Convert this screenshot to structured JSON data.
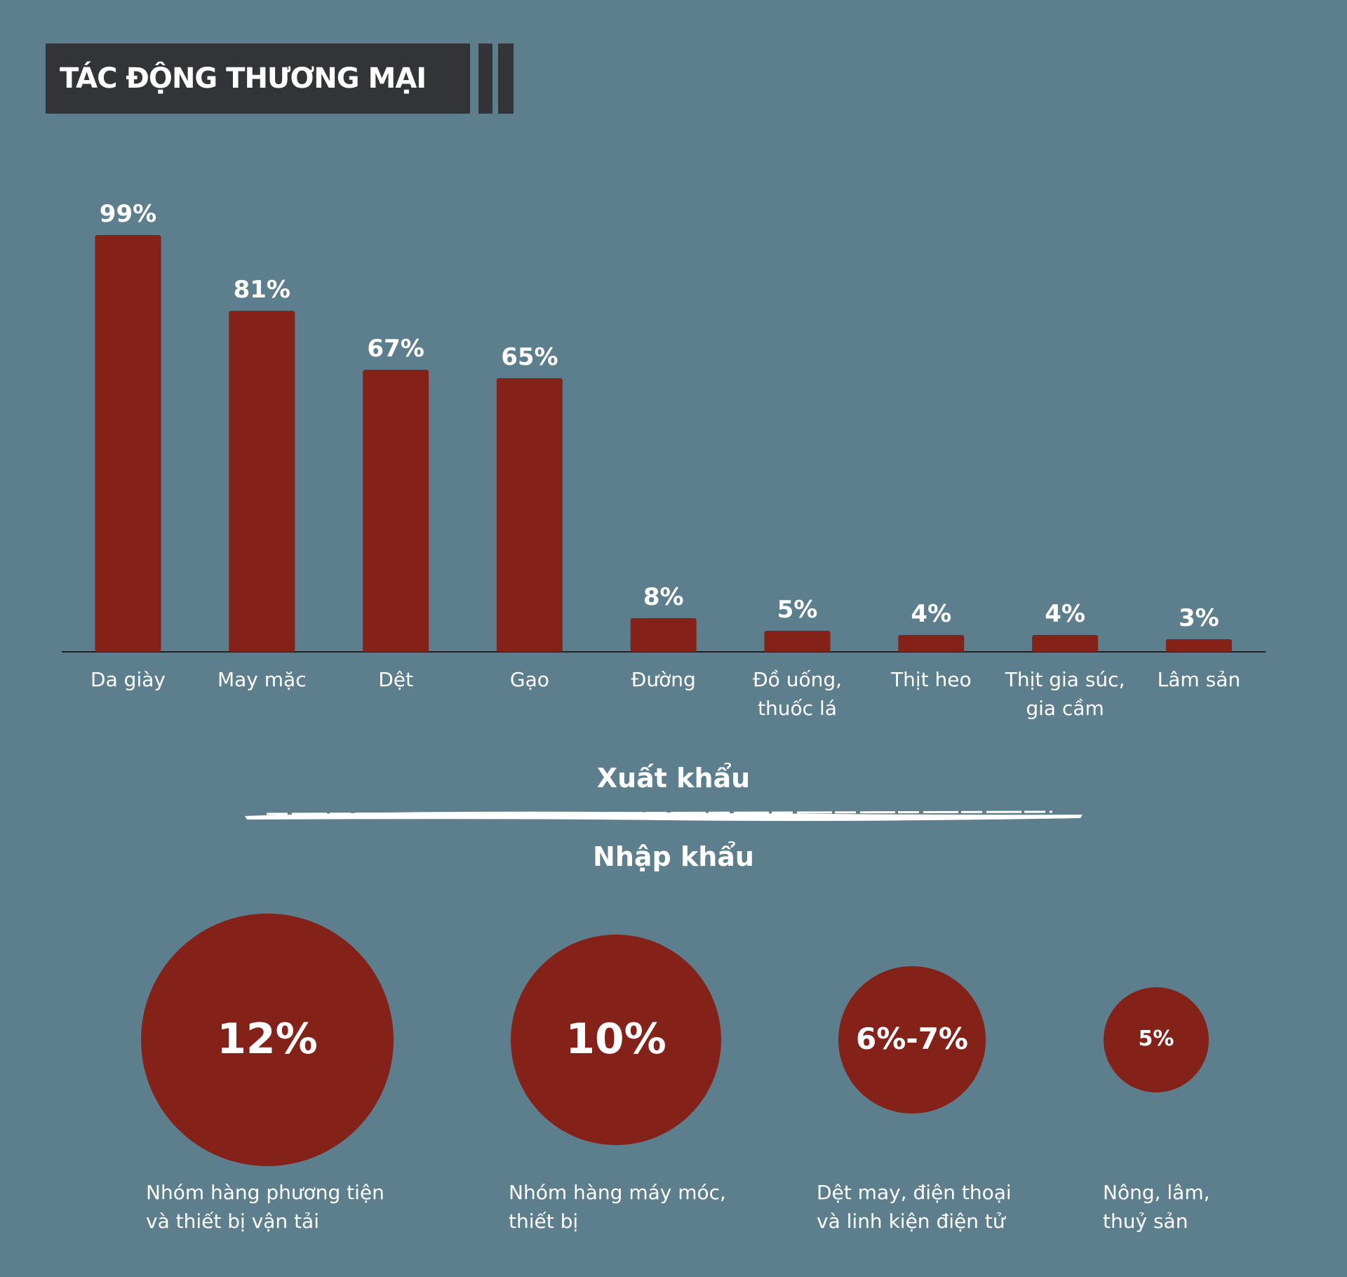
{
  "header": {
    "title": "TÁC ĐỘNG THƯƠNG MẠI"
  },
  "chart_data": [
    {
      "type": "bar",
      "title": "Xuất khẩu",
      "categories": [
        "Da giày",
        "May mặc",
        "Dệt",
        "Gạo",
        "Đường",
        "Đồ uống,\nthuốc lá",
        "Thịt heo",
        "Thịt gia súc,\ngia cầm",
        "Lâm sản"
      ],
      "values": [
        99,
        81,
        67,
        65,
        8,
        5,
        4,
        4,
        3
      ],
      "value_labels": [
        "99%",
        "81%",
        "67%",
        "65%",
        "8%",
        "5%",
        "4%",
        "4%",
        "3%"
      ],
      "color": "#84221a"
    },
    {
      "type": "bubble",
      "title": "Nhập khẩu",
      "categories": [
        "Nhóm hàng phương tiện\nvà thiết bị vận tải",
        "Nhóm hàng máy móc,\nthiết bị",
        "Dệt may, điện thoại\nvà linh kiện điện tử",
        "Nông, lâm,\nthuỷ sản"
      ],
      "values": [
        12,
        10,
        [
          6,
          7
        ],
        5
      ],
      "value_labels": [
        "12%",
        "10%",
        "6%-7%",
        "5%"
      ],
      "color": "#84221a"
    }
  ]
}
